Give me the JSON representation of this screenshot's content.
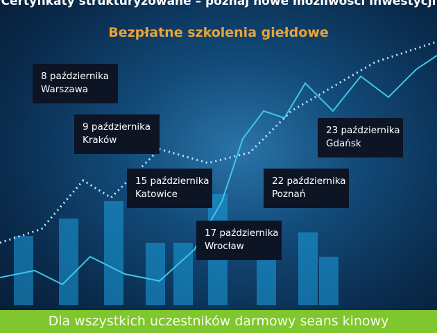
{
  "header": {
    "title": "Certyfikaty strukturyzowane – poznaj nowe możliwości inwestycji",
    "subtitle": "Bezpłatne szkolenia giełdowe"
  },
  "events": [
    {
      "date": "8 października",
      "city": "Warszawa"
    },
    {
      "date": "9 października",
      "city": "Kraków"
    },
    {
      "date": "15 października",
      "city": "Katowice"
    },
    {
      "date": "17 października",
      "city": "Wrocław"
    },
    {
      "date": "22 października",
      "city": "Poznań"
    },
    {
      "date": "23 października",
      "city": "Gdańsk"
    }
  ],
  "footer": {
    "text": "Dla wszystkich uczestników darmowy seans kinowy"
  },
  "colors": {
    "accent": "#e8a33a",
    "footer": "#80c62e",
    "box": "#0d1424"
  }
}
